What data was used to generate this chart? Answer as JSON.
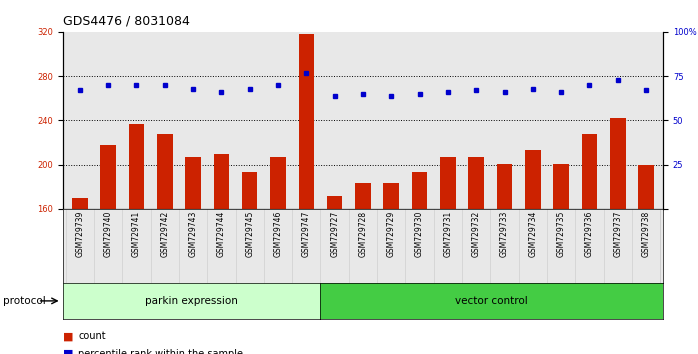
{
  "title": "GDS4476 / 8031084",
  "categories": [
    "GSM729739",
    "GSM729740",
    "GSM729741",
    "GSM729742",
    "GSM729743",
    "GSM729744",
    "GSM729745",
    "GSM729746",
    "GSM729747",
    "GSM729727",
    "GSM729728",
    "GSM729729",
    "GSM729730",
    "GSM729731",
    "GSM729732",
    "GSM729733",
    "GSM729734",
    "GSM729735",
    "GSM729736",
    "GSM729737",
    "GSM729738"
  ],
  "bar_values": [
    170,
    218,
    237,
    228,
    207,
    210,
    193,
    207,
    318,
    172,
    183,
    183,
    193,
    207,
    207,
    201,
    213,
    201,
    228,
    242,
    200
  ],
  "dot_values_pct": [
    67,
    70,
    70,
    70,
    68,
    66,
    68,
    70,
    77,
    64,
    65,
    64,
    65,
    66,
    67,
    66,
    68,
    66,
    70,
    73,
    67
  ],
  "bar_color": "#cc2200",
  "dot_color": "#0000cc",
  "ylim_left": [
    160,
    320
  ],
  "ylim_right": [
    0,
    100
  ],
  "yticks_left": [
    160,
    200,
    240,
    280,
    320
  ],
  "yticks_right": [
    0,
    25,
    50,
    75,
    100
  ],
  "group1_label": "parkin expression",
  "group2_label": "vector control",
  "group1_color": "#ccffcc",
  "group2_color": "#44cc44",
  "protocol_label": "protocol",
  "legend_count_label": "count",
  "legend_pct_label": "percentile rank within the sample",
  "axis_bg_color": "#e8e8e8",
  "n_group1": 9,
  "n_group2": 12,
  "title_fontsize": 9,
  "tick_fontsize": 6,
  "bar_width": 0.55
}
